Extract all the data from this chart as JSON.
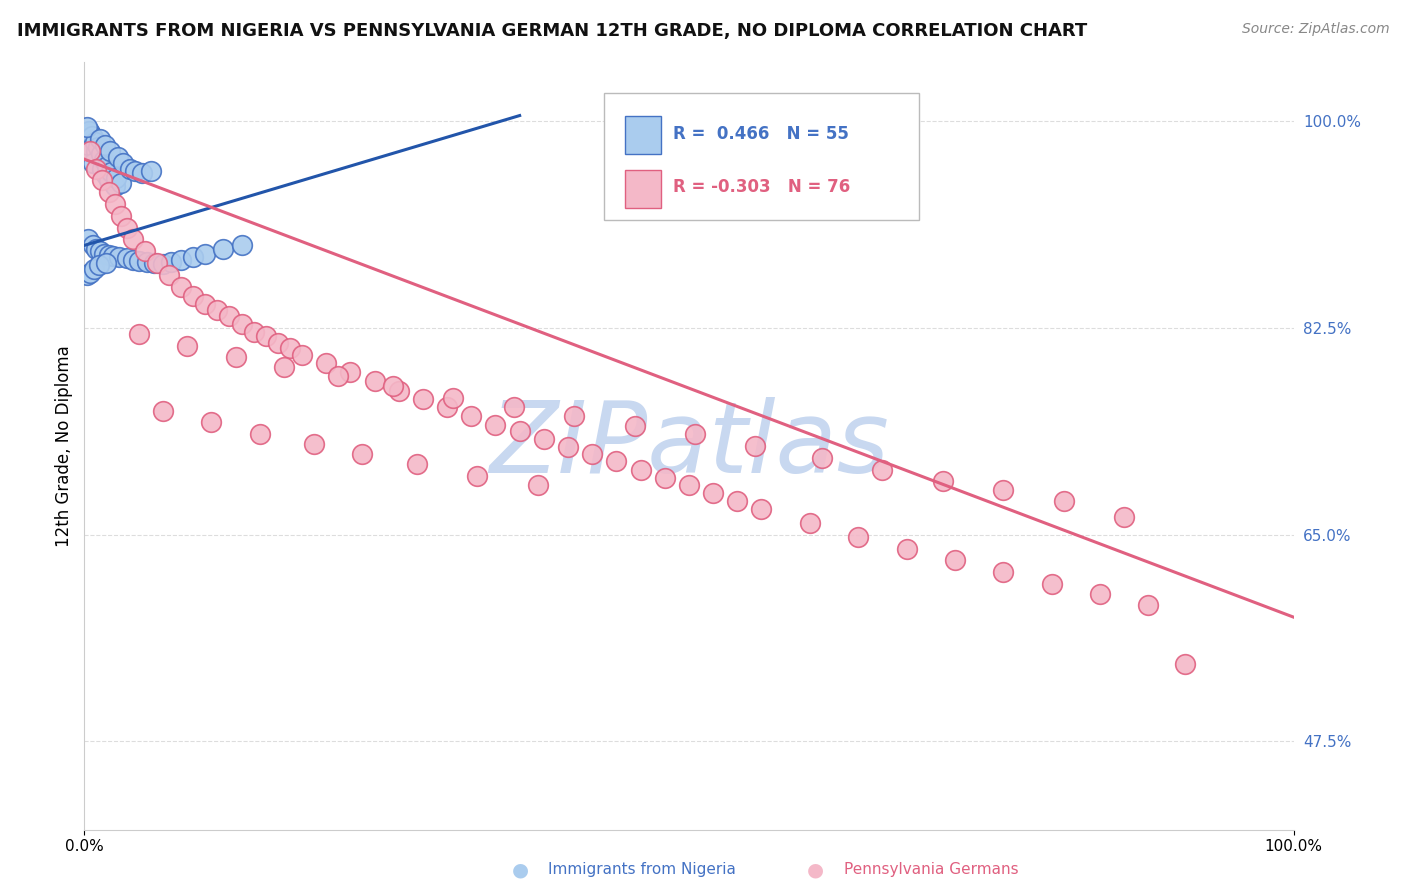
{
  "title": "IMMIGRANTS FROM NIGERIA VS PENNSYLVANIA GERMAN 12TH GRADE, NO DIPLOMA CORRELATION CHART",
  "source_text": "Source: ZipAtlas.com",
  "ylabel": "12th Grade, No Diploma",
  "legend_label_1": "Immigrants from Nigeria",
  "legend_label_2": "Pennsylvania Germans",
  "R1": 0.466,
  "N1": 55,
  "R2": -0.303,
  "N2": 76,
  "xmin": 0.0,
  "xmax": 1.0,
  "ymin": 0.4,
  "ymax": 1.05,
  "ytick_vals": [
    0.475,
    0.65,
    0.825,
    1.0
  ],
  "ytick_labels": [
    "47.5%",
    "65.0%",
    "82.5%",
    "100.0%"
  ],
  "color_blue_fill": "#aaccee",
  "color_blue_edge": "#4472c4",
  "color_pink_fill": "#f4b8c8",
  "color_pink_edge": "#e06080",
  "color_blue_line": "#2255aa",
  "color_pink_line": "#e06080",
  "watermark_color": "#c8d8f0",
  "background_color": "#ffffff",
  "grid_color": "#dddddd",
  "blue_x": [
    0.005,
    0.008,
    0.003,
    0.01,
    0.012,
    0.007,
    0.015,
    0.018,
    0.02,
    0.025,
    0.004,
    0.006,
    0.009,
    0.011,
    0.014,
    0.016,
    0.019,
    0.022,
    0.026,
    0.03,
    0.002,
    0.013,
    0.017,
    0.021,
    0.028,
    0.032,
    0.038,
    0.042,
    0.048,
    0.055,
    0.003,
    0.007,
    0.01,
    0.013,
    0.016,
    0.02,
    0.024,
    0.029,
    0.035,
    0.04,
    0.045,
    0.052,
    0.058,
    0.065,
    0.072,
    0.08,
    0.09,
    0.1,
    0.115,
    0.13,
    0.002,
    0.005,
    0.008,
    0.012,
    0.018
  ],
  "blue_y": [
    0.99,
    0.985,
    0.98,
    0.975,
    0.97,
    0.965,
    0.96,
    0.955,
    0.95,
    0.945,
    0.992,
    0.988,
    0.983,
    0.978,
    0.972,
    0.967,
    0.962,
    0.957,
    0.952,
    0.948,
    0.995,
    0.985,
    0.98,
    0.975,
    0.97,
    0.965,
    0.96,
    0.958,
    0.956,
    0.958,
    0.9,
    0.895,
    0.892,
    0.89,
    0.888,
    0.887,
    0.886,
    0.885,
    0.884,
    0.883,
    0.882,
    0.881,
    0.88,
    0.879,
    0.881,
    0.883,
    0.885,
    0.888,
    0.892,
    0.895,
    0.87,
    0.872,
    0.875,
    0.878,
    0.88
  ],
  "pink_x": [
    0.005,
    0.01,
    0.015,
    0.02,
    0.025,
    0.03,
    0.035,
    0.04,
    0.05,
    0.06,
    0.07,
    0.08,
    0.09,
    0.1,
    0.11,
    0.12,
    0.13,
    0.14,
    0.15,
    0.16,
    0.17,
    0.18,
    0.2,
    0.22,
    0.24,
    0.26,
    0.28,
    0.3,
    0.32,
    0.34,
    0.36,
    0.38,
    0.4,
    0.42,
    0.44,
    0.46,
    0.48,
    0.5,
    0.52,
    0.54,
    0.56,
    0.6,
    0.64,
    0.68,
    0.72,
    0.76,
    0.8,
    0.84,
    0.88,
    0.045,
    0.085,
    0.125,
    0.165,
    0.21,
    0.255,
    0.305,
    0.355,
    0.405,
    0.455,
    0.505,
    0.555,
    0.61,
    0.66,
    0.71,
    0.76,
    0.81,
    0.86,
    0.91,
    0.065,
    0.105,
    0.145,
    0.19,
    0.23,
    0.275,
    0.325,
    0.375
  ],
  "pink_y": [
    0.975,
    0.96,
    0.95,
    0.94,
    0.93,
    0.92,
    0.91,
    0.9,
    0.89,
    0.88,
    0.87,
    0.86,
    0.852,
    0.845,
    0.84,
    0.835,
    0.828,
    0.822,
    0.818,
    0.812,
    0.808,
    0.802,
    0.795,
    0.788,
    0.78,
    0.772,
    0.765,
    0.758,
    0.75,
    0.743,
    0.738,
    0.731,
    0.724,
    0.718,
    0.712,
    0.705,
    0.698,
    0.692,
    0.685,
    0.678,
    0.672,
    0.66,
    0.648,
    0.638,
    0.628,
    0.618,
    0.608,
    0.6,
    0.59,
    0.82,
    0.81,
    0.8,
    0.792,
    0.784,
    0.776,
    0.766,
    0.758,
    0.75,
    0.742,
    0.735,
    0.725,
    0.715,
    0.705,
    0.695,
    0.688,
    0.678,
    0.665,
    0.54,
    0.755,
    0.745,
    0.735,
    0.727,
    0.718,
    0.71,
    0.7,
    0.692
  ],
  "blue_line_x": [
    0.0,
    0.36
  ],
  "blue_line_y": [
    0.895,
    1.005
  ],
  "pink_line_x": [
    0.0,
    1.0
  ],
  "pink_line_y": [
    0.968,
    0.58
  ]
}
